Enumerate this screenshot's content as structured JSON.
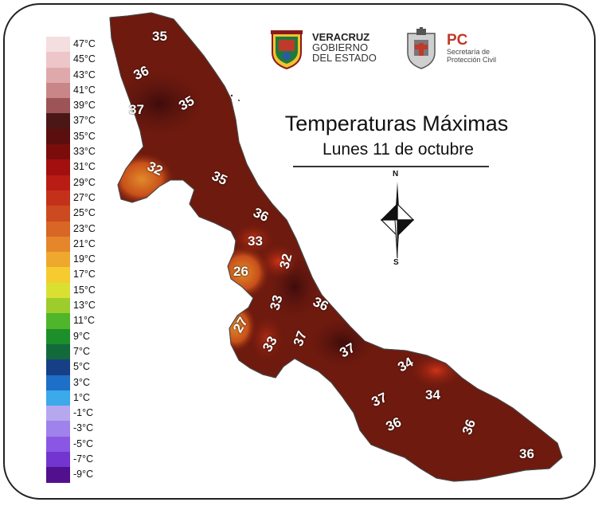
{
  "title": "Temperaturas Máximas",
  "subtitle": "Lunes 11 de octubre",
  "logos": {
    "veracruz_line1": "VERACRUZ",
    "veracruz_line2": "GOBIERNO",
    "veracruz_line3": "DEL ESTADO",
    "pc_title": "PC",
    "pc_line1": "Secretaría de",
    "pc_line2": "Protección Civil"
  },
  "compass": {
    "north": "N",
    "south": "S"
  },
  "legend": [
    {
      "label": "47°C",
      "color": "#f4dfe0"
    },
    {
      "label": "45°C",
      "color": "#ecc6c8"
    },
    {
      "label": "43°C",
      "color": "#dfa9ab"
    },
    {
      "label": "41°C",
      "color": "#c98688"
    },
    {
      "label": "39°C",
      "color": "#9c5456"
    },
    {
      "label": "37°C",
      "color": "#4a1716"
    },
    {
      "label": "35°C",
      "color": "#5a0f0e"
    },
    {
      "label": "33°C",
      "color": "#7a0d0c"
    },
    {
      "label": "31°C",
      "color": "#a10f0f"
    },
    {
      "label": "29°C",
      "color": "#b91c14"
    },
    {
      "label": "27°C",
      "color": "#c3311a"
    },
    {
      "label": "25°C",
      "color": "#cc4a1f"
    },
    {
      "label": "23°C",
      "color": "#d86624"
    },
    {
      "label": "21°C",
      "color": "#e5862a"
    },
    {
      "label": "19°C",
      "color": "#efa82e"
    },
    {
      "label": "17°C",
      "color": "#f5cb30"
    },
    {
      "label": "15°C",
      "color": "#d9e032"
    },
    {
      "label": "13°C",
      "color": "#9ccd2d"
    },
    {
      "label": "11°C",
      "color": "#4fb52a"
    },
    {
      "label": "9°C",
      "color": "#1d8f2a"
    },
    {
      "label": "7°C",
      "color": "#126a3a"
    },
    {
      "label": "5°C",
      "color": "#163f86"
    },
    {
      "label": "3°C",
      "color": "#1e6fc8"
    },
    {
      "label": "1°C",
      "color": "#3ba9ea"
    },
    {
      "label": "-1°C",
      "color": "#b5a8ee"
    },
    {
      "label": "-3°C",
      "color": "#9f82ec"
    },
    {
      "label": "-5°C",
      "color": "#8a57e4"
    },
    {
      "label": "-7°C",
      "color": "#7235cf"
    },
    {
      "label": "-9°C",
      "color": "#52108e"
    }
  ],
  "map_labels": [
    {
      "id": "p1",
      "text": "35"
    },
    {
      "id": "p2",
      "text": "36"
    },
    {
      "id": "p3",
      "text": "37"
    },
    {
      "id": "p4",
      "text": "35"
    },
    {
      "id": "p5",
      "text": "32"
    },
    {
      "id": "p6",
      "text": "35"
    },
    {
      "id": "p7",
      "text": "36"
    },
    {
      "id": "p8",
      "text": "33"
    },
    {
      "id": "p9",
      "text": "26"
    },
    {
      "id": "p10",
      "text": "32"
    },
    {
      "id": "p11",
      "text": "33"
    },
    {
      "id": "p12",
      "text": "36"
    },
    {
      "id": "p13",
      "text": "27"
    },
    {
      "id": "p14",
      "text": "33"
    },
    {
      "id": "p15",
      "text": "37"
    },
    {
      "id": "p16",
      "text": "37"
    },
    {
      "id": "p17",
      "text": "34"
    },
    {
      "id": "p18",
      "text": "34"
    },
    {
      "id": "p19",
      "text": "37"
    },
    {
      "id": "p20",
      "text": "36"
    },
    {
      "id": "p21",
      "text": "36"
    },
    {
      "id": "p22",
      "text": "36"
    }
  ],
  "colors": {
    "map_base": "#6e1a0e",
    "map_dark": "#4a1210",
    "map_hot": "#c42a12",
    "map_cool": "#d9701f"
  }
}
